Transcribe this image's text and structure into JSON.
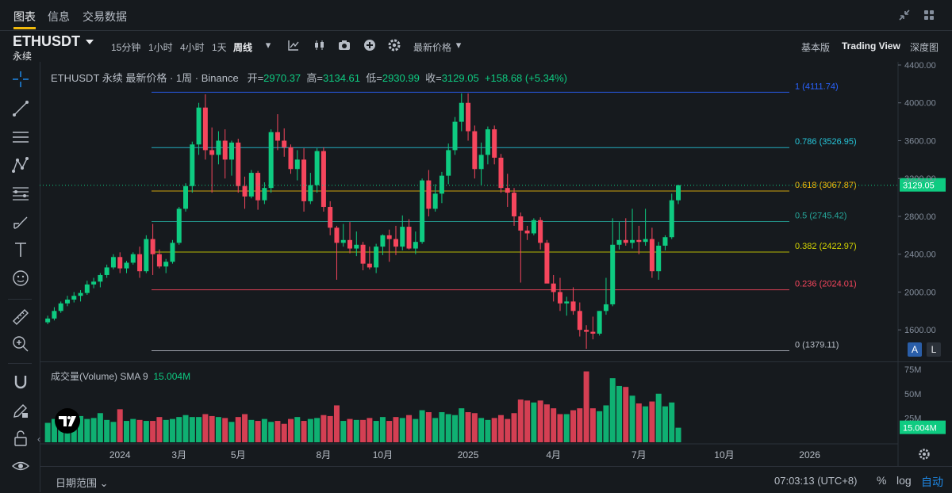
{
  "header": {
    "tabs": [
      {
        "label": "图表"
      },
      {
        "label": "信息"
      },
      {
        "label": "交易数据"
      }
    ],
    "icons": [
      "collapse-icon",
      "grid-icon"
    ]
  },
  "toolbar": {
    "symbol": "ETHUSDT",
    "symbol_sub": "永续",
    "timeframes": [
      "15分钟",
      "1小时",
      "4小时",
      "1天",
      "周线"
    ],
    "active_timeframe": "周线",
    "price_type": "最新价格",
    "modes": [
      "基本版",
      "Trading View",
      "深度图"
    ],
    "active_mode": "Trading View"
  },
  "legend": {
    "title": "ETHUSDT 永续 最新价格 · 1周 · Binance",
    "open_label": "开=",
    "open": "2970.37",
    "high_label": "高=",
    "high": "3134.61",
    "low_label": "低=",
    "low": "2930.99",
    "close_label": "收=",
    "close": "3129.05",
    "change": "+158.68 (+5.34%)"
  },
  "volume_legend": {
    "title": "成交量(Volume) SMA 9",
    "value": "15.004M"
  },
  "bottom": {
    "date_range": "日期范围",
    "clock": "07:03:13 (UTC+8)",
    "options": [
      "%",
      "log",
      "自动"
    ],
    "active_option": "自动",
    "scale_buttons": [
      "A",
      "L"
    ]
  },
  "colors": {
    "up": "#0ecb81",
    "down": "#f6465d",
    "bg": "#161a1e",
    "accent": "#f0b90b"
  },
  "chart_data": [
    {
      "type": "candlestick",
      "title": "",
      "ylim": [
        1300,
        4400
      ],
      "y_ticks": [
        4400,
        4000,
        3600,
        3200,
        2800,
        2400,
        2000,
        1600
      ],
      "x_tick_labels": [
        {
          "label": "2024",
          "index": 11
        },
        {
          "label": "3月",
          "index": 20
        },
        {
          "label": "5月",
          "index": 29
        },
        {
          "label": "8月",
          "index": 42
        },
        {
          "label": "10月",
          "index": 51
        },
        {
          "label": "2025",
          "index": 64
        },
        {
          "label": "4月",
          "index": 77
        },
        {
          "label": "7月",
          "index": 90
        },
        {
          "label": "10月",
          "index": 103
        },
        {
          "label": "2026",
          "index": 116
        }
      ],
      "last_price": "3129.05",
      "fib_levels": [
        {
          "label": "1 (4111.74)",
          "price": 4111.74,
          "color": "#2962ff"
        },
        {
          "label": "0.786 (3526.95)",
          "price": 3526.95,
          "color": "#26c6da"
        },
        {
          "label": "0.618 (3067.87)",
          "price": 3067.87,
          "color": "#f0b90b"
        },
        {
          "label": "0.5 (2745.42)",
          "price": 2745.42,
          "color": "#26a69a"
        },
        {
          "label": "0.382 (2422.97)",
          "price": 2422.97,
          "color": "#d4d400"
        },
        {
          "label": "0.236 (2024.01)",
          "price": 2024.01,
          "color": "#f6465d"
        },
        {
          "label": "0 (1379.11)",
          "price": 1379.11,
          "color": "#b7bdc6"
        }
      ],
      "ohlc": [
        [
          1680,
          1750,
          1660,
          1720
        ],
        [
          1720,
          1840,
          1700,
          1800
        ],
        [
          1800,
          1900,
          1780,
          1880
        ],
        [
          1880,
          1960,
          1850,
          1920
        ],
        [
          1920,
          2000,
          1890,
          1960
        ],
        [
          1960,
          2020,
          1900,
          1990
        ],
        [
          1990,
          2120,
          1970,
          2080
        ],
        [
          2080,
          2150,
          2040,
          2110
        ],
        [
          2110,
          2200,
          2050,
          2180
        ],
        [
          2180,
          2290,
          2150,
          2260
        ],
        [
          2260,
          2400,
          2240,
          2370
        ],
        [
          2370,
          2420,
          2200,
          2250
        ],
        [
          2250,
          2330,
          2200,
          2310
        ],
        [
          2310,
          2420,
          2290,
          2400
        ],
        [
          2400,
          2480,
          2150,
          2220
        ],
        [
          2220,
          2600,
          2200,
          2560
        ],
        [
          2560,
          2720,
          2180,
          2400
        ],
        [
          2400,
          2450,
          2250,
          2270
        ],
        [
          2270,
          2350,
          2200,
          2320
        ],
        [
          2320,
          2550,
          2300,
          2520
        ],
        [
          2520,
          2900,
          2500,
          2880
        ],
        [
          2880,
          3150,
          2850,
          3120
        ],
        [
          3120,
          3590,
          3050,
          3560
        ],
        [
          3560,
          4000,
          3450,
          3950
        ],
        [
          3950,
          4090,
          3400,
          3500
        ],
        [
          3500,
          3740,
          3050,
          3450
        ],
        [
          3450,
          3700,
          3350,
          3600
        ],
        [
          3600,
          3720,
          3200,
          3400
        ],
        [
          3400,
          3600,
          3230,
          3580
        ],
        [
          3580,
          3620,
          3050,
          3120
        ],
        [
          3120,
          3220,
          2880,
          3010
        ],
        [
          3010,
          3290,
          2990,
          3260
        ],
        [
          3260,
          3280,
          2870,
          2970
        ],
        [
          2970,
          3160,
          2930,
          3100
        ],
        [
          3100,
          3720,
          3050,
          3690
        ],
        [
          3690,
          3880,
          3500,
          3600
        ],
        [
          3600,
          3730,
          3430,
          3530
        ],
        [
          3530,
          3560,
          3250,
          3300
        ],
        [
          3300,
          3500,
          3180,
          3400
        ],
        [
          3400,
          3520,
          2850,
          2960
        ],
        [
          2960,
          3260,
          2930,
          3130
        ],
        [
          3130,
          3520,
          3050,
          3490
        ],
        [
          3490,
          3530,
          2850,
          2900
        ],
        [
          2900,
          2960,
          2600,
          2680
        ],
        [
          2680,
          2700,
          2130,
          2520
        ],
        [
          2520,
          2720,
          2480,
          2550
        ],
        [
          2550,
          2740,
          2410,
          2460
        ],
        [
          2460,
          2640,
          2380,
          2500
        ],
        [
          2500,
          2530,
          2230,
          2300
        ],
        [
          2300,
          2480,
          2240,
          2260
        ],
        [
          2260,
          2510,
          2200,
          2480
        ],
        [
          2480,
          2610,
          2390,
          2600
        ],
        [
          2600,
          2660,
          2320,
          2560
        ],
        [
          2560,
          2700,
          2390,
          2480
        ],
        [
          2480,
          2810,
          2440,
          2690
        ],
        [
          2690,
          2770,
          2450,
          2460
        ],
        [
          2460,
          2640,
          2400,
          2530
        ],
        [
          2530,
          3200,
          2510,
          3180
        ],
        [
          3180,
          3290,
          2800,
          2880
        ],
        [
          2880,
          3140,
          2850,
          3040
        ],
        [
          3040,
          3270,
          2940,
          3230
        ],
        [
          3230,
          3570,
          3140,
          3500
        ],
        [
          3500,
          3850,
          3450,
          3800
        ],
        [
          3800,
          4100,
          3700,
          4000
        ],
        [
          4000,
          4100,
          3600,
          3700
        ],
        [
          3700,
          3760,
          3200,
          3300
        ],
        [
          3300,
          3580,
          3130,
          3450
        ],
        [
          3450,
          3750,
          3350,
          3720
        ],
        [
          3720,
          3760,
          3350,
          3420
        ],
        [
          3420,
          3460,
          3050,
          3100
        ],
        [
          3100,
          3250,
          2900,
          3050
        ],
        [
          3050,
          3100,
          2700,
          2800
        ],
        [
          2800,
          2840,
          2100,
          2650
        ],
        [
          2650,
          2700,
          2550,
          2620
        ],
        [
          2620,
          2780,
          2600,
          2760
        ],
        [
          2760,
          2790,
          2450,
          2520
        ],
        [
          2520,
          2550,
          2100,
          2090
        ],
        [
          2090,
          2180,
          1900,
          2000
        ],
        [
          2000,
          2150,
          1800,
          1880
        ],
        [
          1880,
          1950,
          1750,
          1900
        ],
        [
          1900,
          2050,
          1760,
          1800
        ],
        [
          1800,
          1890,
          1530,
          1600
        ],
        [
          1600,
          1650,
          1400,
          1580
        ],
        [
          1580,
          1740,
          1500,
          1560
        ],
        [
          1560,
          1800,
          1540,
          1800
        ],
        [
          1800,
          2150,
          1760,
          1870
        ],
        [
          1870,
          2780,
          1850,
          2500
        ],
        [
          2500,
          2740,
          2450,
          2550
        ],
        [
          2550,
          2780,
          2490,
          2520
        ],
        [
          2520,
          2880,
          2460,
          2550
        ],
        [
          2550,
          2700,
          2400,
          2530
        ],
        [
          2530,
          2880,
          2490,
          2560
        ],
        [
          2560,
          2680,
          2150,
          2220
        ],
        [
          2220,
          2530,
          2130,
          2490
        ],
        [
          2490,
          2600,
          2440,
          2580
        ],
        [
          2580,
          3040,
          2560,
          2970
        ],
        [
          2970,
          3134,
          2930,
          3129
        ]
      ]
    },
    {
      "type": "bar",
      "title": "成交量(Volume)",
      "ylim": [
        0,
        80
      ],
      "y_ticks": [
        {
          "label": "75M",
          "value": 75
        },
        {
          "label": "50M",
          "value": 50
        },
        {
          "label": "25M",
          "value": 25
        }
      ],
      "current_value": "15.004M",
      "values_m": [
        20,
        24,
        26,
        23,
        22,
        27,
        24,
        25,
        30,
        23,
        21,
        34,
        22,
        24,
        23,
        22,
        22,
        26,
        23,
        24,
        26,
        28,
        26,
        26,
        29,
        27,
        26,
        25,
        21,
        26,
        29,
        23,
        22,
        24,
        21,
        22,
        19,
        24,
        26,
        22,
        24,
        25,
        28,
        27,
        38,
        22,
        24,
        23,
        23,
        25,
        22,
        26,
        22,
        26,
        25,
        28,
        24,
        33,
        31,
        25,
        31,
        29,
        28,
        35,
        31,
        30,
        25,
        23,
        25,
        28,
        24,
        30,
        44,
        43,
        41,
        43,
        39,
        35,
        29,
        29,
        33,
        35,
        73,
        35,
        32,
        38,
        66,
        58,
        57,
        48,
        40,
        37,
        42,
        50,
        37,
        41,
        15
      ]
    }
  ]
}
